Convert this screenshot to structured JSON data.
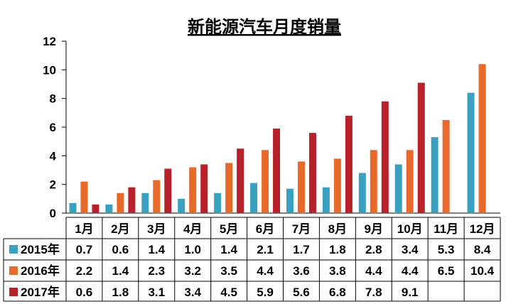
{
  "chart_data": {
    "type": "bar",
    "title": "新能源汽车月度销量",
    "categories": [
      "1月",
      "2月",
      "3月",
      "4月",
      "5月",
      "6月",
      "7月",
      "8月",
      "9月",
      "10月",
      "11月",
      "12月"
    ],
    "ylim": [
      0,
      12
    ],
    "yticks": [
      "0",
      "2",
      "4",
      "6",
      "8",
      "10",
      "12"
    ],
    "grid": false,
    "legend": "data-table-left",
    "series": [
      {
        "name": "2015年",
        "color": "#3aa0c0",
        "values": [
          0.7,
          0.6,
          1.4,
          1.0,
          1.4,
          2.1,
          1.7,
          1.8,
          2.8,
          3.4,
          5.3,
          8.4
        ],
        "labels": [
          "0.7",
          "0.6",
          "1.4",
          "1.0",
          "1.4",
          "2.1",
          "1.7",
          "1.8",
          "2.8",
          "3.4",
          "5.3",
          "8.4"
        ]
      },
      {
        "name": "2016年",
        "color": "#e86a2a",
        "values": [
          2.2,
          1.4,
          2.3,
          3.2,
          3.5,
          4.4,
          3.6,
          3.8,
          4.4,
          4.4,
          6.5,
          10.4
        ],
        "labels": [
          "2.2",
          "1.4",
          "2.3",
          "3.2",
          "3.5",
          "4.4",
          "3.6",
          "3.8",
          "4.4",
          "4.4",
          "6.5",
          "10.4"
        ]
      },
      {
        "name": "2017年",
        "color": "#b8202a",
        "values": [
          0.6,
          1.8,
          3.1,
          3.4,
          4.5,
          5.9,
          5.6,
          6.8,
          7.8,
          9.1,
          null,
          null
        ],
        "labels": [
          "0.6",
          "1.8",
          "3.1",
          "3.4",
          "4.5",
          "5.9",
          "5.6",
          "6.8",
          "7.8",
          "9.1",
          "",
          ""
        ]
      }
    ]
  }
}
